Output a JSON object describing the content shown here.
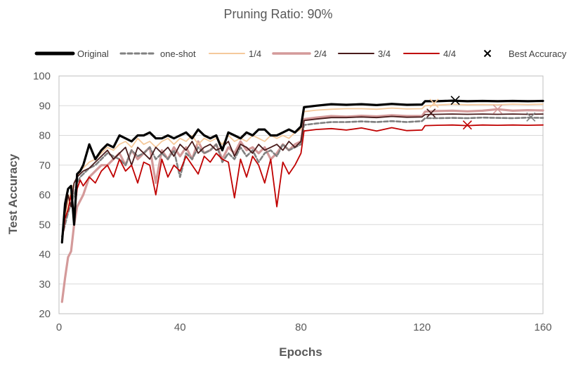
{
  "chart_data": {
    "type": "line",
    "title": "Pruning Ratio: 90%",
    "xlabel": "Epochs",
    "ylabel": "Test Accuracy",
    "xlim": [
      0,
      160
    ],
    "ylim": [
      20,
      100
    ],
    "xticks": [
      0,
      40,
      80,
      120,
      160
    ],
    "yticks": [
      20,
      30,
      40,
      50,
      60,
      70,
      80,
      90,
      100
    ],
    "grid": "horizontal",
    "legend_position": "top",
    "legend": [
      {
        "label": "Original",
        "color": "#000000",
        "style": "solid-thick"
      },
      {
        "label": "one-shot",
        "color": "#808080",
        "style": "dashed"
      },
      {
        "label": "1/4",
        "color": "#f5c99b",
        "style": "solid"
      },
      {
        "label": "2/4",
        "color": "#d49a9a",
        "style": "solid-thick"
      },
      {
        "label": "3/4",
        "color": "#4a1c1c",
        "style": "solid"
      },
      {
        "label": "4/4",
        "color": "#c00000",
        "style": "solid"
      },
      {
        "label": "Best Accuracy",
        "color": "#000000",
        "style": "x-marker"
      }
    ],
    "series": [
      {
        "name": "Original",
        "color": "#000000",
        "x": [
          1,
          2,
          3,
          4,
          5,
          6,
          7,
          8,
          10,
          12,
          14,
          16,
          18,
          20,
          22,
          24,
          26,
          28,
          30,
          32,
          34,
          36,
          38,
          40,
          42,
          44,
          46,
          48,
          50,
          52,
          54,
          56,
          58,
          60,
          62,
          64,
          66,
          68,
          70,
          72,
          74,
          76,
          78,
          80,
          81,
          85,
          90,
          95,
          100,
          105,
          110,
          115,
          120,
          121,
          125,
          130,
          135,
          140,
          145,
          150,
          155,
          160
        ],
        "y": [
          44,
          57,
          62,
          63,
          50,
          67,
          68,
          70,
          77,
          72,
          75,
          77,
          76,
          80,
          79,
          78,
          80,
          80,
          81,
          79,
          79,
          80,
          79,
          80,
          81,
          79,
          82,
          80,
          79,
          80,
          75,
          81,
          80,
          79,
          81,
          80,
          82,
          82,
          80,
          80,
          81,
          82,
          81,
          83,
          89.5,
          90,
          90.5,
          90.3,
          90.5,
          90.2,
          90.6,
          90.3,
          90.4,
          91.5,
          91.5,
          91.7,
          91.5,
          91.6,
          91.5,
          91.6,
          91.5,
          91.6
        ]
      },
      {
        "name": "one-shot",
        "color": "#808080",
        "x": [
          1,
          2,
          3,
          4,
          5,
          6,
          7,
          8,
          10,
          12,
          14,
          16,
          18,
          20,
          22,
          24,
          26,
          28,
          30,
          32,
          34,
          36,
          38,
          40,
          42,
          44,
          46,
          48,
          50,
          52,
          54,
          56,
          58,
          60,
          62,
          64,
          66,
          68,
          70,
          72,
          74,
          76,
          78,
          80,
          81,
          85,
          90,
          95,
          100,
          105,
          110,
          115,
          120,
          121,
          125,
          130,
          135,
          140,
          145,
          150,
          155,
          160
        ],
        "y": [
          46,
          50,
          54,
          57,
          60,
          64,
          66,
          67,
          69,
          70,
          72,
          74,
          73,
          72,
          70,
          75,
          73,
          74,
          76,
          72,
          74,
          72,
          75,
          66,
          74,
          72,
          76,
          74,
          75,
          77,
          71,
          74,
          72,
          76,
          73,
          75,
          71,
          74,
          75,
          73,
          77,
          75,
          76,
          77,
          83.5,
          84,
          84.5,
          84.5,
          84.7,
          84.5,
          84.8,
          84.5,
          84.8,
          85.8,
          85.8,
          85.9,
          85.8,
          86,
          85.9,
          85.8,
          86,
          85.9
        ]
      },
      {
        "name": "1/4",
        "color": "#f5c99b",
        "x": [
          1,
          2,
          3,
          4,
          5,
          6,
          7,
          8,
          10,
          12,
          14,
          16,
          18,
          20,
          22,
          24,
          26,
          28,
          30,
          32,
          34,
          36,
          38,
          40,
          42,
          44,
          46,
          48,
          50,
          52,
          54,
          56,
          58,
          60,
          62,
          64,
          66,
          68,
          70,
          72,
          74,
          76,
          78,
          80,
          81,
          85,
          90,
          95,
          100,
          105,
          110,
          115,
          120,
          121,
          125,
          130,
          135,
          140,
          145,
          150,
          155,
          160
        ],
        "y": [
          45,
          52,
          58,
          61,
          64,
          66,
          68,
          69,
          71,
          72,
          74,
          76,
          75,
          77,
          78,
          76,
          79,
          77,
          78,
          76,
          78,
          79,
          77,
          79,
          78,
          80,
          77,
          79,
          78,
          79,
          77,
          80,
          78,
          79,
          78,
          80,
          79,
          78,
          80,
          79,
          80,
          79,
          81,
          82,
          88,
          88.5,
          88.8,
          89,
          89,
          88.8,
          89.2,
          88.9,
          89,
          90,
          90.2,
          90.5,
          90.3,
          90.4,
          90.3,
          90.5,
          90.4,
          90.5
        ]
      },
      {
        "name": "2/4",
        "color": "#d49a9a",
        "x": [
          1,
          2,
          3,
          4,
          5,
          6,
          7,
          8,
          10,
          12,
          14,
          16,
          18,
          20,
          22,
          24,
          26,
          28,
          30,
          32,
          34,
          36,
          38,
          40,
          42,
          44,
          46,
          48,
          50,
          52,
          54,
          56,
          58,
          60,
          62,
          64,
          66,
          68,
          70,
          72,
          74,
          76,
          78,
          80,
          81,
          85,
          90,
          95,
          100,
          105,
          110,
          115,
          120,
          121,
          125,
          130,
          135,
          140,
          145,
          150,
          155,
          160
        ],
        "y": [
          24,
          32,
          39,
          41,
          50,
          56,
          58,
          60,
          66,
          68,
          70,
          70,
          72,
          74,
          70,
          75,
          72,
          74,
          76,
          64,
          75,
          72,
          76,
          73,
          76,
          72,
          78,
          74,
          75,
          77,
          72,
          76,
          74,
          78,
          75,
          76,
          74,
          76,
          72,
          74,
          77,
          75,
          77,
          78,
          85.5,
          86,
          86.5,
          86.3,
          86.6,
          86.4,
          86.8,
          86.5,
          86.5,
          88,
          88.2,
          88.3,
          88.1,
          88.3,
          88.8,
          88.3,
          88.5,
          88.4
        ]
      },
      {
        "name": "3/4",
        "color": "#4a1c1c",
        "x": [
          1,
          2,
          3,
          4,
          5,
          6,
          7,
          8,
          10,
          12,
          14,
          16,
          18,
          20,
          22,
          24,
          26,
          28,
          30,
          32,
          34,
          36,
          38,
          40,
          42,
          44,
          46,
          48,
          50,
          52,
          54,
          56,
          58,
          60,
          62,
          64,
          66,
          68,
          70,
          72,
          74,
          76,
          78,
          80,
          81,
          85,
          90,
          95,
          100,
          105,
          110,
          115,
          120,
          121,
          125,
          130,
          135,
          140,
          145,
          150,
          155,
          160
        ],
        "y": [
          45,
          54,
          60,
          56,
          64,
          66,
          67,
          68,
          69,
          71,
          73,
          75,
          72,
          74,
          76,
          70,
          76,
          74,
          72,
          76,
          74,
          76,
          73,
          77,
          75,
          78,
          74,
          76,
          77,
          75,
          76,
          78,
          73,
          77,
          76,
          74,
          77,
          75,
          76,
          77,
          75,
          78,
          76,
          78,
          85,
          85.5,
          86,
          86,
          86.2,
          86,
          86.4,
          86.1,
          86.2,
          87,
          87.1,
          87.2,
          87.1,
          87.2,
          87.1,
          87.2,
          87.1,
          87.2
        ]
      },
      {
        "name": "4/4",
        "color": "#c00000",
        "x": [
          1,
          2,
          3,
          4,
          5,
          6,
          7,
          8,
          10,
          12,
          14,
          16,
          18,
          20,
          22,
          24,
          26,
          28,
          30,
          32,
          34,
          36,
          38,
          40,
          42,
          44,
          46,
          48,
          50,
          52,
          54,
          56,
          58,
          60,
          62,
          64,
          66,
          68,
          70,
          72,
          74,
          76,
          78,
          80,
          81,
          85,
          90,
          95,
          100,
          105,
          110,
          115,
          120,
          121,
          125,
          130,
          135,
          140,
          145,
          150,
          155,
          160
        ],
        "y": [
          44,
          52,
          55,
          60,
          52,
          62,
          65,
          63,
          66,
          64,
          68,
          70,
          66,
          72,
          68,
          70,
          64,
          71,
          70,
          60,
          72,
          66,
          70,
          68,
          73,
          70,
          67,
          73,
          71,
          74,
          72,
          71,
          59,
          72,
          66,
          73,
          70,
          64,
          72,
          56,
          71,
          67,
          70,
          74,
          81.5,
          82,
          82.3,
          81.8,
          82.5,
          81.5,
          82.6,
          81.6,
          81.8,
          83.3,
          83.4,
          83.5,
          83.3,
          83.5,
          83.4,
          83.5,
          83.4,
          83.5
        ]
      }
    ],
    "best_accuracy": [
      {
        "series": "Original",
        "x": 131,
        "y": 91.8
      },
      {
        "series": "1/4",
        "x": 124,
        "y": 90.8
      },
      {
        "series": "2/4",
        "x": 145,
        "y": 88.8
      },
      {
        "series": "3/4",
        "x": 123,
        "y": 87.5
      },
      {
        "series": "4/4",
        "x": 135,
        "y": 83.5
      },
      {
        "series": "one-shot",
        "x": 156,
        "y": 86.2
      }
    ]
  }
}
